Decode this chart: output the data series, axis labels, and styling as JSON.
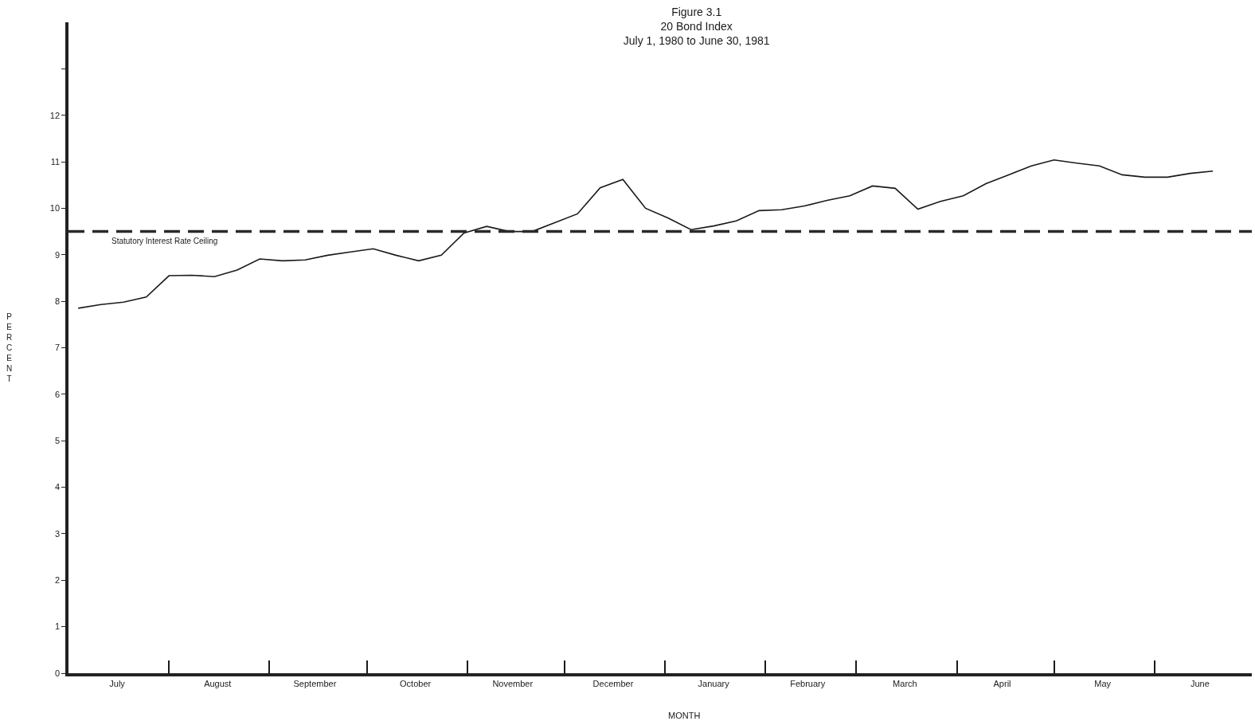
{
  "chart_data": {
    "type": "line",
    "title": "Figure 3.1\n20 Bond Index\nJuly 1, 1980 to June 30, 1981",
    "xlabel": "MONTH",
    "ylabel": "PERCENT",
    "x": [
      "1980-07-04",
      "1980-07-11",
      "1980-07-18",
      "1980-07-25",
      "1980-08-01",
      "1980-08-08",
      "1980-08-15",
      "1980-08-22",
      "1980-08-29",
      "1980-09-05",
      "1980-09-12",
      "1980-09-19",
      "1980-09-26",
      "1980-10-03",
      "1980-10-10",
      "1980-10-17",
      "1980-10-24",
      "1980-10-31",
      "1980-11-07",
      "1980-11-14",
      "1980-11-21",
      "1980-11-28",
      "1980-12-05",
      "1980-12-12",
      "1980-12-19",
      "1980-12-26",
      "1981-01-02",
      "1981-01-09",
      "1981-01-16",
      "1981-01-23",
      "1981-01-30",
      "1981-02-06",
      "1981-02-13",
      "1981-02-20",
      "1981-02-27",
      "1981-03-06",
      "1981-03-13",
      "1981-03-20",
      "1981-03-27",
      "1981-04-03",
      "1981-04-10",
      "1981-04-17",
      "1981-04-24",
      "1981-05-01",
      "1981-05-08",
      "1981-05-15",
      "1981-05-22",
      "1981-05-29",
      "1981-06-05",
      "1981-06-12",
      "1981-06-19"
    ],
    "series": [
      {
        "color": "#1a1a1a",
        "values": [
          7.85,
          7.93,
          7.98,
          8.09,
          8.55,
          8.56,
          8.53,
          8.67,
          8.91,
          8.87,
          8.89,
          8.99,
          9.06,
          9.13,
          8.99,
          8.87,
          8.99,
          9.47,
          9.61,
          9.5,
          9.5,
          9.69,
          9.88,
          10.44,
          10.62,
          10.0,
          9.79,
          9.54,
          9.62,
          9.73,
          9.95,
          9.97,
          10.05,
          10.17,
          10.27,
          10.48,
          10.43,
          9.98,
          10.15,
          10.27,
          10.53,
          10.72,
          10.91,
          11.04,
          10.97,
          10.91,
          10.72,
          10.67,
          10.67,
          10.75,
          10.8
        ]
      }
    ],
    "ref_lines": [
      {
        "axis": "y",
        "value": 9.5,
        "label": "Statutory Interest Rate Ceiling",
        "color": "#2a2a2a",
        "line_style": "dashed"
      }
    ],
    "xlim": [
      "1980-07-01",
      "1981-07-01"
    ],
    "xticks": [
      {
        "value": "1980-07-16",
        "label": "July"
      },
      {
        "value": "1980-08-01",
        "label": null
      },
      {
        "value": "1980-08-16",
        "label": "August"
      },
      {
        "value": "1980-09-01",
        "label": null
      },
      {
        "value": "1980-09-15",
        "label": "September"
      },
      {
        "value": "1980-10-01",
        "label": null
      },
      {
        "value": "1980-10-16",
        "label": "October"
      },
      {
        "value": "1980-11-01",
        "label": null
      },
      {
        "value": "1980-11-15",
        "label": "November"
      },
      {
        "value": "1980-12-01",
        "label": null
      },
      {
        "value": "1980-12-16",
        "label": "December"
      },
      {
        "value": "1981-01-01",
        "label": null
      },
      {
        "value": "1981-01-16",
        "label": "January"
      },
      {
        "value": "1981-02-01",
        "label": null
      },
      {
        "value": "1981-02-14",
        "label": "February"
      },
      {
        "value": "1981-03-01",
        "label": null
      },
      {
        "value": "1981-03-16",
        "label": "March"
      },
      {
        "value": "1981-04-01",
        "label": null
      },
      {
        "value": "1981-04-15",
        "label": "April"
      },
      {
        "value": "1981-05-01",
        "label": null
      },
      {
        "value": "1981-05-16",
        "label": "May"
      },
      {
        "value": "1981-06-01",
        "label": null
      },
      {
        "value": "1981-06-15",
        "label": "June"
      }
    ],
    "ylim": [
      0,
      14
    ],
    "yticks": [
      0,
      1,
      2,
      3,
      4,
      5,
      6,
      7,
      8,
      9,
      10,
      11,
      12,
      {
        "value": 13,
        "label": null
      }
    ],
    "marker": "none",
    "line_style": "solid"
  }
}
